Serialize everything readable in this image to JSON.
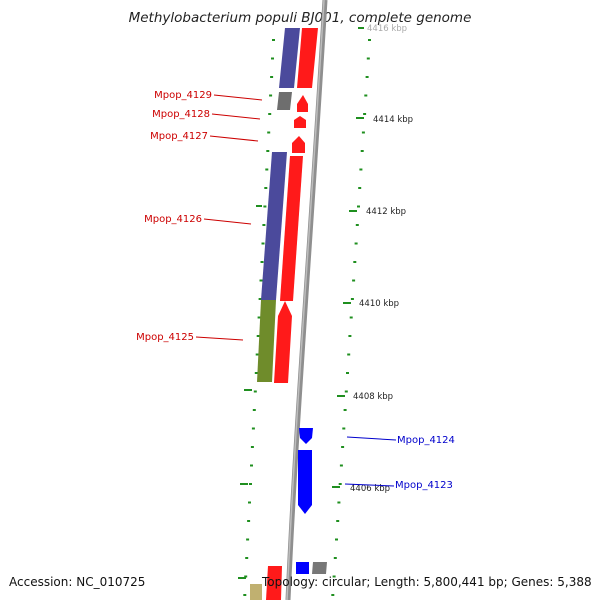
{
  "title": "Methylobacterium populi BJ001, complete genome",
  "footer": {
    "accession": "Accession: NC_010725",
    "summary": "Topology: circular; Length: 5,800,441 bp; Genes: 5,388"
  },
  "colors": {
    "backbone": "#8a8a8a",
    "forward_cds": "#ff0000",
    "reverse_cds_purple": "#4a4a9a",
    "reverse_cds_green": "#6f8f2a",
    "gray_feature": "#707070",
    "plus_strand_blue": "#0000ff",
    "tick_green": "#1f8f1f",
    "label_red": "#cc0000",
    "label_blue": "#0000cc"
  },
  "kbp_labels": [
    "4416 kbp",
    "4414 kbp",
    "4412 kbp",
    "4410 kbp",
    "4408 kbp",
    "4406 kbp"
  ],
  "gene_labels": [
    {
      "name": "Mpop_4129",
      "strand": "minus"
    },
    {
      "name": "Mpop_4128",
      "strand": "minus"
    },
    {
      "name": "Mpop_4127",
      "strand": "minus"
    },
    {
      "name": "Mpop_4126",
      "strand": "minus"
    },
    {
      "name": "Mpop_4125",
      "strand": "minus"
    },
    {
      "name": "Mpop_4124",
      "strand": "plus"
    },
    {
      "name": "Mpop_4123",
      "strand": "plus"
    }
  ]
}
